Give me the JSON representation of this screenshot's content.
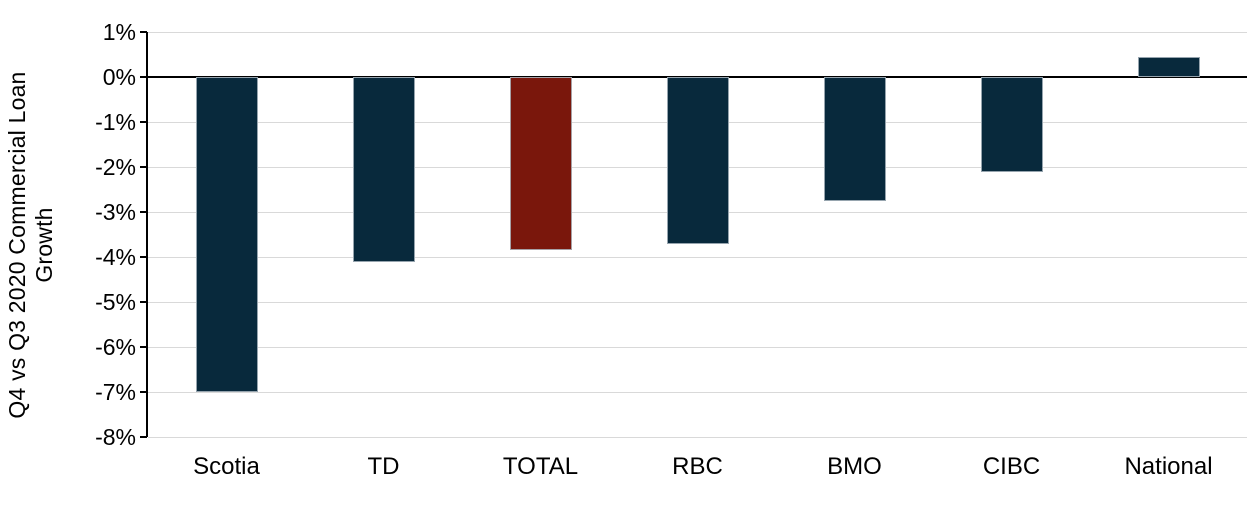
{
  "chart_data": {
    "type": "bar",
    "title": "",
    "xlabel": "",
    "ylabel": "Q4 vs Q3 2020 Commercial Loan Growth",
    "categories": [
      "Scotia",
      "TD",
      "TOTAL",
      "RBC",
      "BMO",
      "CIBC",
      "National"
    ],
    "values": [
      -7.0,
      -4.1,
      -3.85,
      -3.7,
      -2.75,
      -2.1,
      0.45
    ],
    "ylim": [
      -8,
      1
    ],
    "ytick_step": 1,
    "ytick_labels": [
      "1%",
      "0%",
      "-1%",
      "-2%",
      "-3%",
      "-4%",
      "-5%",
      "-6%",
      "-7%",
      "-8%"
    ],
    "grid": true,
    "legend": "none",
    "highlight_category": "TOTAL",
    "colors": {
      "bar_default": "#08293c",
      "bar_highlight": "#7a170c",
      "gridline": "#d9d9d9",
      "zero_line": "#000000",
      "axis": "#000000",
      "text": "#000000",
      "background": "#ffffff"
    }
  }
}
